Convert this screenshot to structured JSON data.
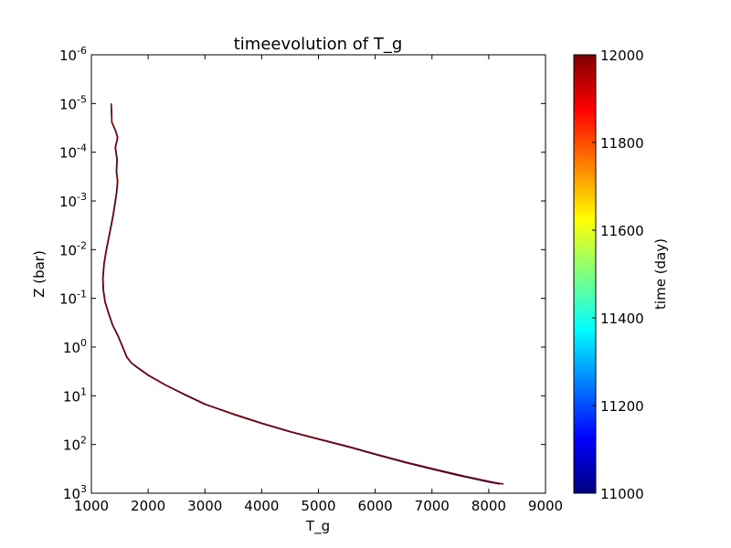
{
  "chart_data": {
    "type": "line",
    "title": "timeevolution of T_g",
    "xlabel": "T_g",
    "ylabel": "Z (bar)",
    "xlim": [
      1000,
      9000
    ],
    "ylim": [
      1000,
      1e-06
    ],
    "y_scale": "log",
    "y_inverted": true,
    "grid": false,
    "x_ticks": [
      1000,
      2000,
      3000,
      4000,
      5000,
      6000,
      7000,
      8000,
      9000
    ],
    "x_tick_labels": [
      "1000",
      "2000",
      "3000",
      "4000",
      "5000",
      "6000",
      "7000",
      "8000",
      "9000"
    ],
    "y_ticks": [
      {
        "value": 1e-06,
        "base": "10",
        "exp": "-6"
      },
      {
        "value": 1e-05,
        "base": "10",
        "exp": "-5"
      },
      {
        "value": 0.0001,
        "base": "10",
        "exp": "-4"
      },
      {
        "value": 0.001,
        "base": "10",
        "exp": "-3"
      },
      {
        "value": 0.01,
        "base": "10",
        "exp": "-2"
      },
      {
        "value": 0.1,
        "base": "10",
        "exp": "-1"
      },
      {
        "value": 1,
        "base": "10",
        "exp": "0"
      },
      {
        "value": 10,
        "base": "10",
        "exp": "1"
      },
      {
        "value": 100,
        "base": "10",
        "exp": "2"
      },
      {
        "value": 1000,
        "base": "10",
        "exp": "3"
      }
    ],
    "series": [
      {
        "color": "#00007f",
        "points": [
          [
            1350,
            1e-05
          ],
          [
            1360,
            2.4e-05
          ],
          [
            1430,
            3.8e-05
          ],
          [
            1460,
            5e-05
          ],
          [
            1420,
            8e-05
          ],
          [
            1450,
            0.00014
          ],
          [
            1440,
            0.00025
          ],
          [
            1460,
            0.0004
          ],
          [
            1440,
            0.0007
          ],
          [
            1410,
            0.0012
          ],
          [
            1380,
            0.002
          ],
          [
            1340,
            0.0035
          ],
          [
            1300,
            0.006
          ],
          [
            1250,
            0.012
          ],
          [
            1220,
            0.02
          ],
          [
            1200,
            0.04
          ],
          [
            1210,
            0.07
          ],
          [
            1240,
            0.12
          ],
          [
            1300,
            0.2
          ],
          [
            1370,
            0.35
          ],
          [
            1470,
            0.6
          ],
          [
            1550,
            1
          ],
          [
            1620,
            1.6
          ],
          [
            1700,
            2.1
          ],
          [
            1800,
            2.6
          ],
          [
            2000,
            3.8
          ],
          [
            2300,
            6
          ],
          [
            2600,
            9
          ],
          [
            3000,
            15
          ],
          [
            3500,
            24
          ],
          [
            4000,
            37
          ],
          [
            4500,
            55
          ],
          [
            5000,
            78
          ],
          [
            5500,
            110
          ],
          [
            6000,
            160
          ],
          [
            6500,
            230
          ],
          [
            7000,
            320
          ],
          [
            7500,
            440
          ],
          [
            8000,
            590
          ],
          [
            8200,
            650
          ]
        ]
      },
      {
        "color": "#7f0000",
        "points": [
          [
            1350,
            1e-05
          ],
          [
            1360,
            2.4e-05
          ],
          [
            1435,
            3.8e-05
          ],
          [
            1465,
            5e-05
          ],
          [
            1425,
            8e-05
          ],
          [
            1455,
            0.00014
          ],
          [
            1445,
            0.00025
          ],
          [
            1465,
            0.0004
          ],
          [
            1445,
            0.0007
          ],
          [
            1415,
            0.0012
          ],
          [
            1385,
            0.002
          ],
          [
            1345,
            0.0035
          ],
          [
            1305,
            0.006
          ],
          [
            1255,
            0.012
          ],
          [
            1225,
            0.02
          ],
          [
            1205,
            0.04
          ],
          [
            1215,
            0.07
          ],
          [
            1245,
            0.12
          ],
          [
            1305,
            0.2
          ],
          [
            1375,
            0.35
          ],
          [
            1475,
            0.6
          ],
          [
            1555,
            1
          ],
          [
            1625,
            1.6
          ],
          [
            1705,
            2.1
          ],
          [
            1810,
            2.6
          ],
          [
            2010,
            3.8
          ],
          [
            2310,
            6
          ],
          [
            2615,
            9
          ],
          [
            3015,
            15
          ],
          [
            3520,
            24
          ],
          [
            4020,
            37
          ],
          [
            4525,
            55
          ],
          [
            5025,
            78
          ],
          [
            5530,
            110
          ],
          [
            6035,
            160
          ],
          [
            6540,
            230
          ],
          [
            7045,
            320
          ],
          [
            7550,
            440
          ],
          [
            8060,
            590
          ],
          [
            8260,
            650
          ]
        ]
      }
    ],
    "colorbar": {
      "label": "time (day)",
      "min": 11000,
      "max": 12000,
      "colormap": "jet",
      "ticks": [
        11000,
        11200,
        11400,
        11600,
        11800,
        12000
      ],
      "tick_labels": [
        "11000",
        "11200",
        "11400",
        "11600",
        "11800",
        "12000"
      ],
      "colors": [
        "#00007f",
        "#0000ff",
        "#007fff",
        "#00ffff",
        "#7fff7f",
        "#ffff00",
        "#ff7f00",
        "#ff0000",
        "#7f0000"
      ]
    }
  }
}
